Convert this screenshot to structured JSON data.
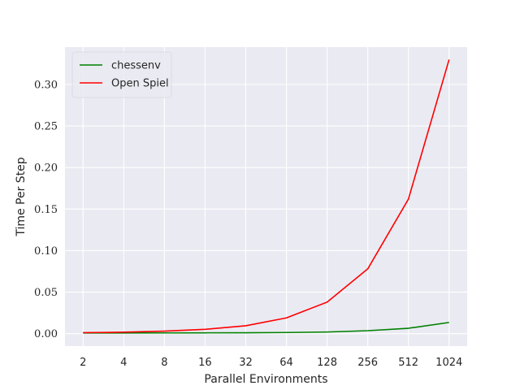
{
  "chart_data": {
    "type": "line",
    "title": "",
    "xlabel": "Parallel Environments",
    "ylabel": "Time Per Step",
    "x": [
      "2",
      "4",
      "8",
      "16",
      "32",
      "64",
      "128",
      "256",
      "512",
      "1024"
    ],
    "series": [
      {
        "name": "chessenv",
        "color": "#008000",
        "values": [
          0.0008,
          0.0008,
          0.0009,
          0.001,
          0.0011,
          0.0014,
          0.002,
          0.0036,
          0.0065,
          0.0135
        ]
      },
      {
        "name": "Open Spiel",
        "color": "#ff0000",
        "values": [
          0.0012,
          0.0018,
          0.003,
          0.0052,
          0.0095,
          0.019,
          0.038,
          0.078,
          0.162,
          0.33
        ]
      }
    ],
    "ylim": [
      -0.015,
      0.345
    ],
    "yticks": [
      "0.00",
      "0.05",
      "0.10",
      "0.15",
      "0.20",
      "0.25",
      "0.30"
    ],
    "ytick_values": [
      0,
      0.05,
      0.1,
      0.15,
      0.2,
      0.25,
      0.3
    ],
    "grid": true,
    "legend_position": "top-left",
    "background": "#eaeaf2",
    "grid_color": "#ffffff"
  }
}
